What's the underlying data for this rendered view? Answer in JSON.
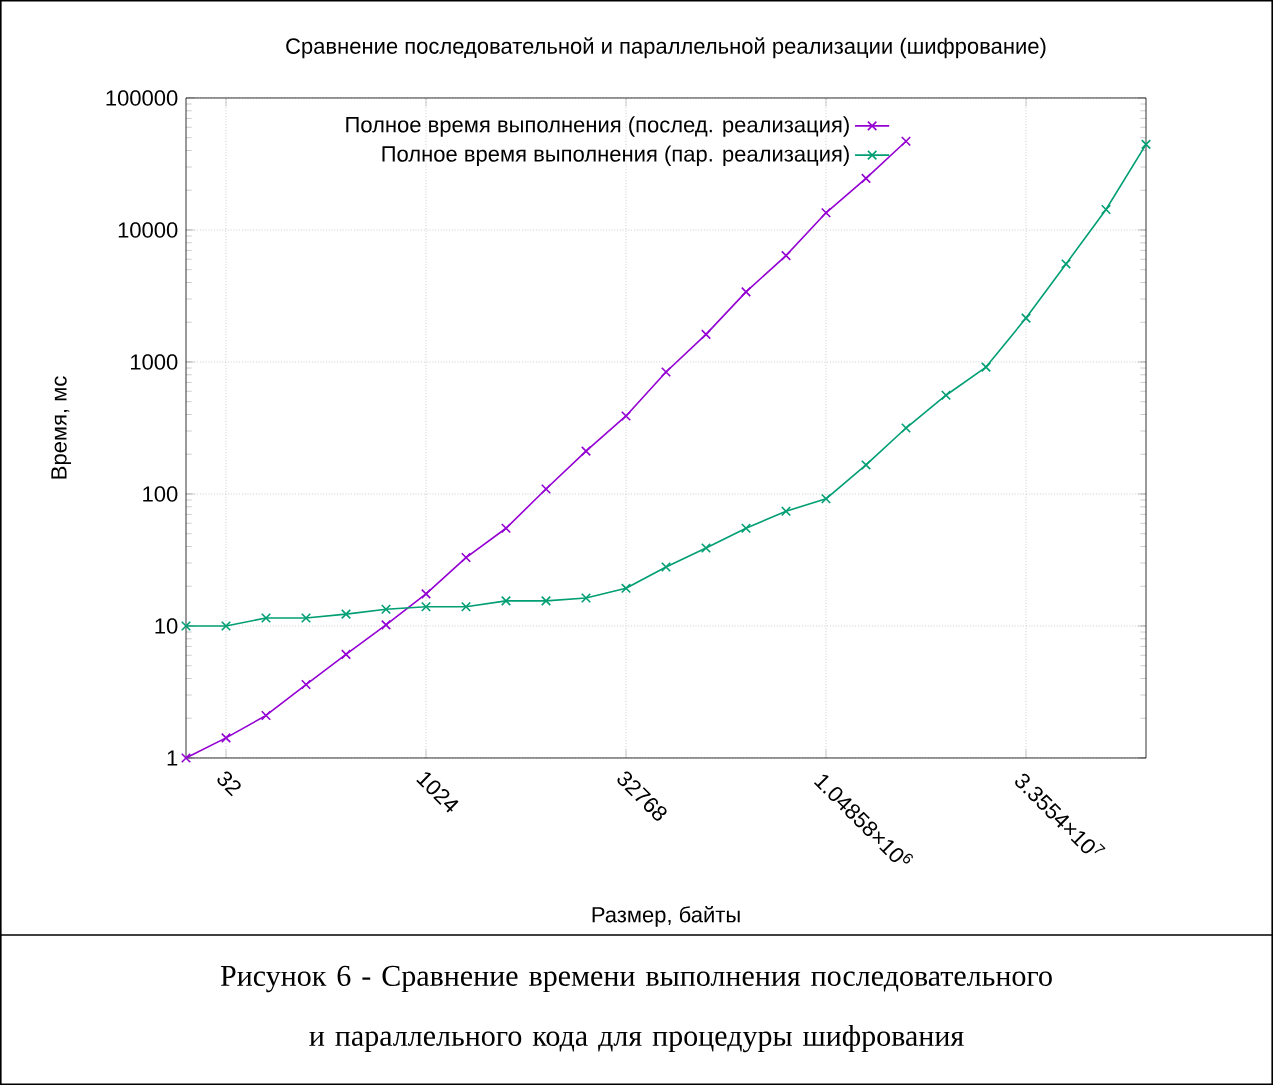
{
  "chart_data": {
    "type": "line",
    "title": "Сравнение последовательной и параллельной реализации (шифрование)",
    "xlabel": "Размер, байты",
    "ylabel": "Время, мс",
    "log": "xy",
    "grid": true,
    "legend": "top",
    "marker": "cross",
    "line_style": "solid",
    "x": [
      16,
      32,
      64,
      128,
      256,
      512,
      1024,
      2048,
      4096,
      8192,
      16384,
      32768,
      65536,
      131072,
      262144,
      524288,
      1048576,
      2097152,
      4194304,
      8388608,
      16777216,
      33554432,
      67108864,
      134217728,
      268435456
    ],
    "xlim": [
      16,
      268435456
    ],
    "xticks": [
      32,
      1024,
      32768,
      {
        "value": 1048576,
        "label": "1.04858×10$^{6}$"
      },
      {
        "value": 33554432,
        "label": "3.3554×10$^{7}$"
      }
    ],
    "ylim": [
      1,
      100000
    ],
    "yticks": [
      1,
      10,
      100,
      1000,
      10000,
      100000
    ],
    "series": [
      {
        "name": "Полное время выполнения (послед. реализация)",
        "color": "#9400d3",
        "values": [
          1,
          1.42,
          2.1,
          3.6,
          6.1,
          10.2,
          17.5,
          33,
          55,
          109,
          211,
          390,
          840,
          1620,
          3400,
          6400,
          13500,
          24600,
          47000,
          null,
          null,
          null,
          null,
          null,
          null
        ]
      },
      {
        "name": "Полное время выполнения (пар. реализация)",
        "color": "#009e73",
        "values": [
          10,
          10,
          11.5,
          11.5,
          12.3,
          13.4,
          14,
          14,
          15.5,
          15.5,
          16.3,
          19.3,
          28,
          39,
          55,
          74,
          92,
          166,
          316,
          560,
          915,
          2150,
          5530,
          14300,
          44500
        ]
      }
    ],
    "annotations": [
      "Рисунок 6 - Сравнение времени выполнения последовательного и параллельного кода для процедуры шифрования"
    ]
  }
}
